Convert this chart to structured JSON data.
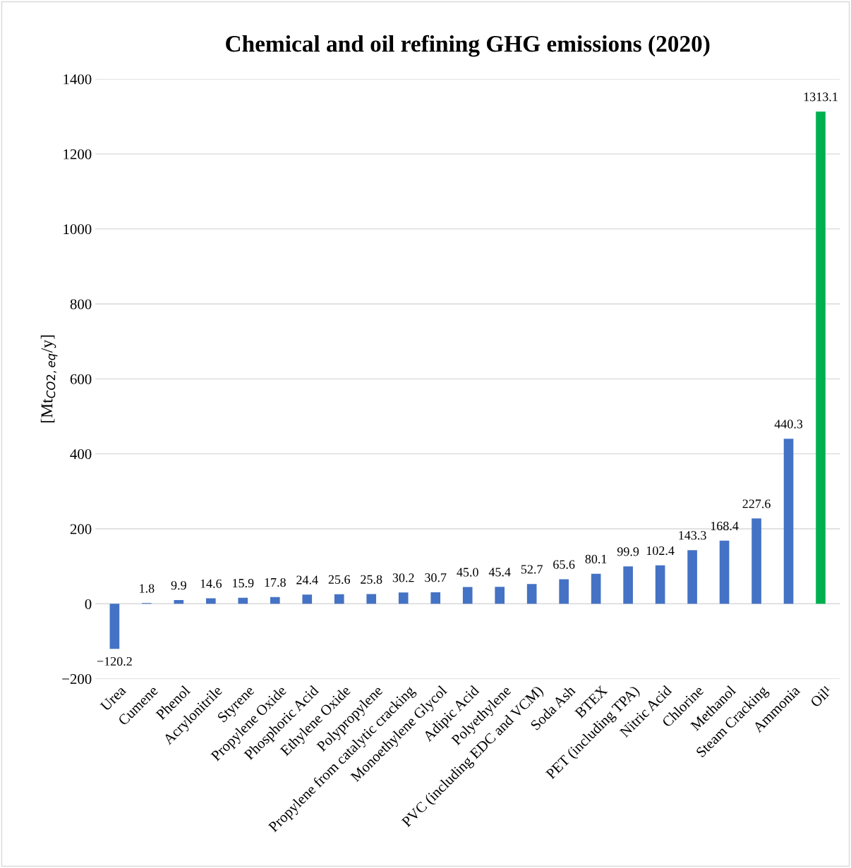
{
  "chart_data": {
    "type": "bar",
    "title": "Chemical and oil refining GHG emissions (2020)",
    "ylabel": "[Mt$_{CO2,eq}$/y]",
    "categories": [
      "Urea",
      "Cumene",
      "Phenol",
      "Acrylonitrile",
      "Styrene",
      "Propylene Oxide",
      "Phosphoric Acid",
      "Ethylene Oxide",
      "Polypropylene",
      "Propylene from catalytic cracking",
      "Monoethylene Glycol",
      "Adipic Acid",
      "Polyethylene",
      "PVC (including EDC and VCM)",
      "Soda Ash",
      "BTEX",
      "PET (including TPA)",
      "Nitric Acid",
      "Chlorine",
      "Methanol",
      "Steam Cracking",
      "Ammonia",
      "Oil¹"
    ],
    "values": [
      -120.2,
      1.8,
      9.9,
      14.6,
      15.9,
      17.8,
      24.4,
      25.6,
      25.8,
      30.2,
      30.7,
      45.0,
      45.4,
      52.7,
      65.6,
      80.1,
      99.9,
      102.4,
      143.3,
      168.4,
      227.6,
      440.3,
      1313.1
    ],
    "value_labels": [
      "−120.2",
      "1.8",
      "9.9",
      "14.6",
      "15.9",
      "17.8",
      "24.4",
      "25.6",
      "25.8",
      "30.2",
      "30.7",
      "45.0",
      "45.4",
      "52.7",
      "65.6",
      "80.1",
      "99.9",
      "102.4",
      "143.3",
      "168.4",
      "227.6",
      "440.3",
      "1313.1"
    ],
    "colors": [
      "#4472c4",
      "#4472c4",
      "#4472c4",
      "#4472c4",
      "#4472c4",
      "#4472c4",
      "#4472c4",
      "#4472c4",
      "#4472c4",
      "#4472c4",
      "#4472c4",
      "#4472c4",
      "#4472c4",
      "#4472c4",
      "#4472c4",
      "#4472c4",
      "#4472c4",
      "#4472c4",
      "#4472c4",
      "#4472c4",
      "#4472c4",
      "#4472c4",
      "#00b050"
    ],
    "ylim": [
      -200,
      1400
    ],
    "yticks": [
      {
        "value": -200,
        "label": "−200"
      },
      0,
      200,
      400,
      600,
      800,
      1000,
      1200,
      1400
    ],
    "grid": "y",
    "legend": false
  }
}
